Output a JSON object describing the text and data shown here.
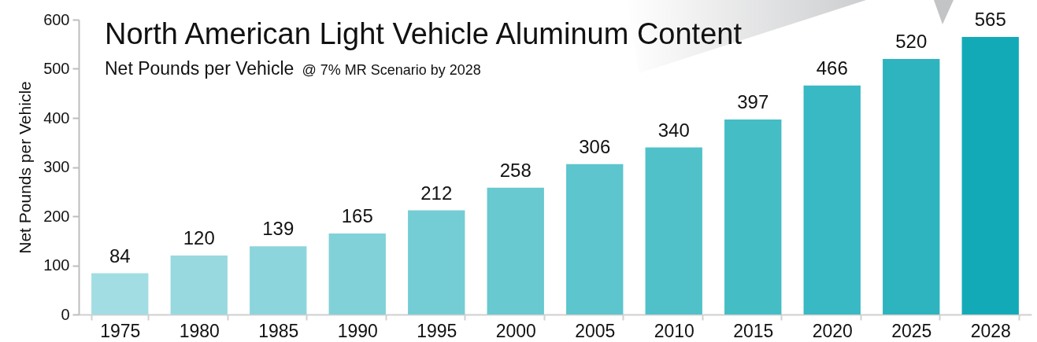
{
  "chart_data": {
    "type": "bar",
    "title": "North American Light Vehicle Aluminum Content",
    "subtitle": "Net Pounds per Vehicle",
    "annotations": [
      "@ 7% MR Scenario by 2028"
    ],
    "ylabel": "Net Pounds per Vehicle",
    "categories": [
      "1975",
      "1980",
      "1985",
      "1990",
      "1995",
      "2000",
      "2005",
      "2010",
      "2015",
      "2020",
      "2025",
      "2028"
    ],
    "values": [
      84,
      120,
      139,
      165,
      212,
      258,
      306,
      340,
      397,
      466,
      520,
      565
    ],
    "colors": [
      "#a3dde4",
      "#98d9e0",
      "#8dd5dc",
      "#81d1d8",
      "#74cdd4",
      "#68c9d0",
      "#5cc5cd",
      "#50c1c9",
      "#44bdc5",
      "#38b9c3",
      "#2db4be",
      "#13aab8"
    ],
    "ylim": [
      0,
      600
    ],
    "yticks": [
      0,
      100,
      200,
      300,
      400,
      500,
      600
    ],
    "data_labels": true
  }
}
